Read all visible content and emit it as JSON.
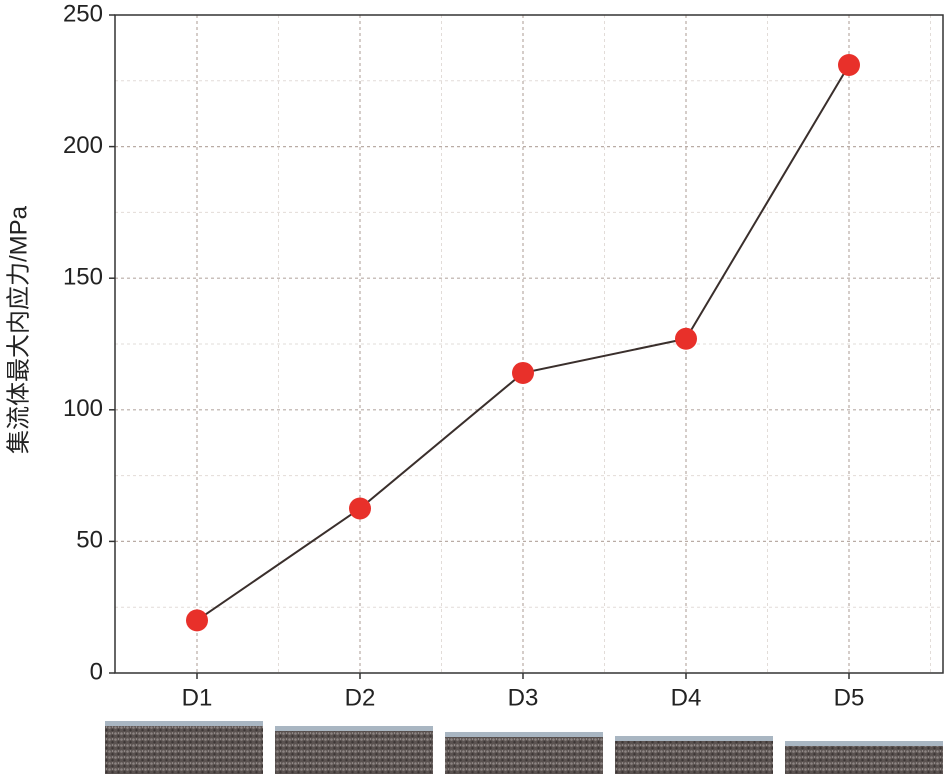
{
  "chart_data": {
    "type": "line",
    "y_label": "集流体最大内应力/MPa",
    "categories": [
      "D1",
      "D2",
      "D3",
      "D4",
      "D5"
    ],
    "series": [
      {
        "name": "集流体最大内应力",
        "color": "#e8302a",
        "line_color": "#3a2f2c",
        "values": [
          20,
          62.5,
          114,
          127,
          231
        ]
      }
    ],
    "ylim": [
      0,
      250
    ],
    "yticks": [
      0,
      50,
      100,
      150,
      200,
      250
    ],
    "minor_yticks": [
      25,
      75,
      125,
      175,
      225
    ],
    "grid": true
  }
}
